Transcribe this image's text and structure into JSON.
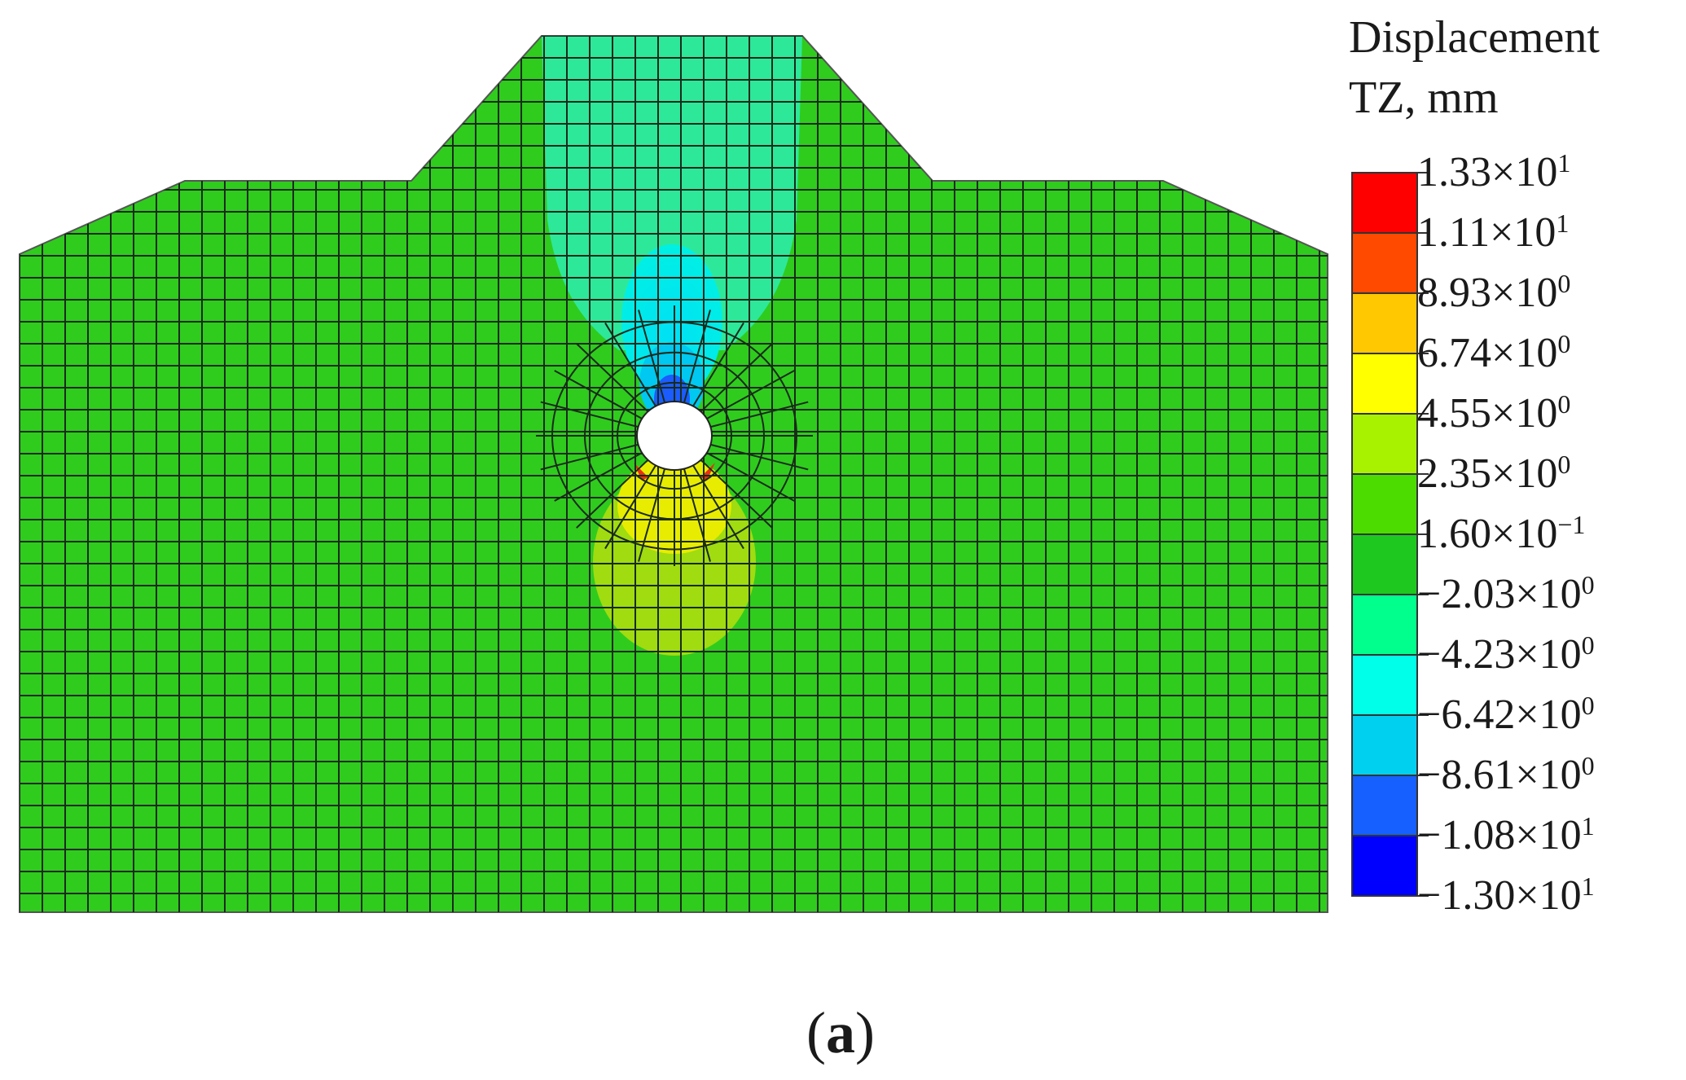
{
  "legend": {
    "title_line1": "Displacement",
    "title_line2": "TZ, mm",
    "colors": [
      "#ff0000",
      "#ff4a00",
      "#ffc800",
      "#ffff00",
      "#a8f200",
      "#4cdc00",
      "#1ec81e",
      "#00ff8c",
      "#00ffe8",
      "#00d0f0",
      "#1660ff",
      "#0000ff"
    ],
    "labels": [
      {
        "mantissa": "1.33×10",
        "exp": "1"
      },
      {
        "mantissa": "1.11×10",
        "exp": "1"
      },
      {
        "mantissa": "8.93×10",
        "exp": "0"
      },
      {
        "mantissa": "6.74×10",
        "exp": "0"
      },
      {
        "mantissa": "4.55×10",
        "exp": "0"
      },
      {
        "mantissa": "2.35×10",
        "exp": "0"
      },
      {
        "mantissa": "1.60×10",
        "exp": "−1"
      },
      {
        "mantissa": "−2.03×10",
        "exp": "0"
      },
      {
        "mantissa": "−4.23×10",
        "exp": "0"
      },
      {
        "mantissa": "−6.42×10",
        "exp": "0"
      },
      {
        "mantissa": "−8.61×10",
        "exp": "0"
      },
      {
        "mantissa": "−1.08×10",
        "exp": "1"
      },
      {
        "mantissa": "−1.30×10",
        "exp": "1"
      }
    ]
  },
  "caption": {
    "open": "(",
    "letter": "a",
    "close": ")"
  },
  "mesh": {
    "background_color": "#2fcc1e",
    "line_color": "#1a2a1a"
  }
}
